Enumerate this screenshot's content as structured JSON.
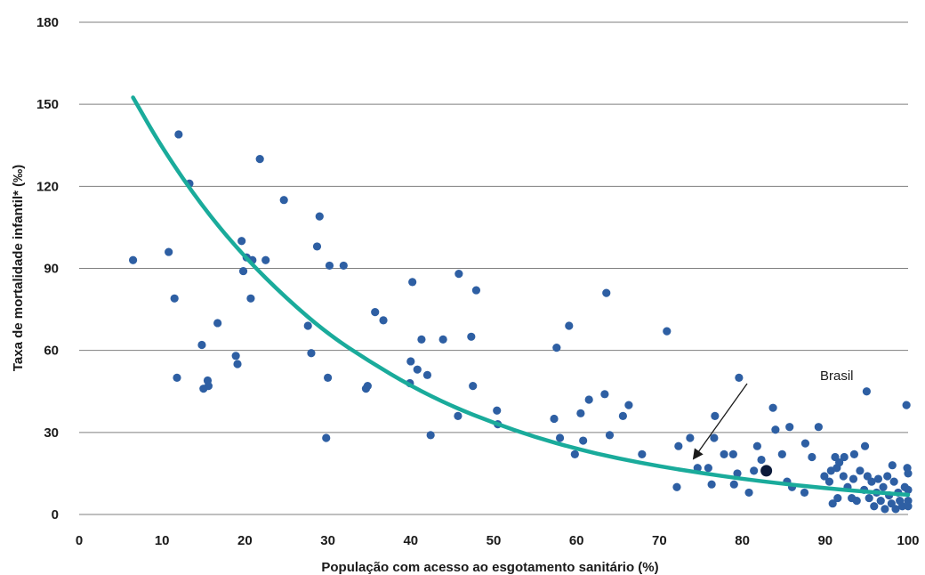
{
  "chart_data": {
    "type": "scatter",
    "xlabel": "População com acesso ao esgotamento sanitário (%)",
    "ylabel": "Taxa de mortalidade infantil* (‰)",
    "xlim": [
      0,
      100
    ],
    "ylim": [
      0,
      180
    ],
    "x_ticks": [
      "0",
      "10",
      "20",
      "30",
      "40",
      "50",
      "60",
      "70",
      "80",
      "90",
      "100"
    ],
    "y_ticks": [
      "0",
      "30",
      "60",
      "90",
      "120",
      "150",
      "180"
    ],
    "grid": "horizontal",
    "colors": {
      "points": "#2e5fa3",
      "trend": "#1aab9b",
      "highlight": "#0b1a3a",
      "grid": "#7f7f7f"
    },
    "series": [
      {
        "type": "scatter",
        "points": [
          [
            6.5,
            93
          ],
          [
            10.8,
            96
          ],
          [
            11.5,
            79
          ],
          [
            11.8,
            50
          ],
          [
            12,
            139
          ],
          [
            13.3,
            121
          ],
          [
            14.8,
            62
          ],
          [
            15,
            46
          ],
          [
            15.5,
            49
          ],
          [
            15.6,
            47
          ],
          [
            16.7,
            70
          ],
          [
            18.9,
            58
          ],
          [
            19.1,
            55
          ],
          [
            19.6,
            100
          ],
          [
            19.8,
            89
          ],
          [
            20.2,
            94
          ],
          [
            20.7,
            79
          ],
          [
            20.9,
            93
          ],
          [
            21.8,
            130
          ],
          [
            22.5,
            93
          ],
          [
            24.7,
            115
          ],
          [
            27.6,
            69
          ],
          [
            28,
            59
          ],
          [
            28.7,
            98
          ],
          [
            29,
            109
          ],
          [
            29.8,
            28
          ],
          [
            30,
            50
          ],
          [
            30.2,
            91
          ],
          [
            31.9,
            91
          ],
          [
            34.6,
            46
          ],
          [
            34.8,
            47
          ],
          [
            35.7,
            74
          ],
          [
            36.7,
            71
          ],
          [
            39.9,
            48
          ],
          [
            40,
            56
          ],
          [
            40.2,
            85
          ],
          [
            40.8,
            53
          ],
          [
            41.3,
            64
          ],
          [
            42,
            51
          ],
          [
            42.4,
            29
          ],
          [
            43.9,
            64
          ],
          [
            45.7,
            36
          ],
          [
            45.8,
            88
          ],
          [
            47.3,
            65
          ],
          [
            47.5,
            47
          ],
          [
            47.9,
            82
          ],
          [
            50.4,
            38
          ],
          [
            50.5,
            33
          ],
          [
            57.3,
            35
          ],
          [
            57.6,
            61
          ],
          [
            58,
            28
          ],
          [
            59.1,
            69
          ],
          [
            59.8,
            22
          ],
          [
            60.5,
            37
          ],
          [
            60.8,
            27
          ],
          [
            61.5,
            42
          ],
          [
            63.4,
            44
          ],
          [
            63.6,
            81
          ],
          [
            64,
            29
          ],
          [
            65.6,
            36
          ],
          [
            66.3,
            40
          ],
          [
            67.9,
            22
          ],
          [
            70.9,
            67
          ],
          [
            72.1,
            10
          ],
          [
            72.3,
            25
          ],
          [
            73.7,
            28
          ],
          [
            74.6,
            17
          ],
          [
            75.9,
            17
          ],
          [
            76.3,
            11
          ],
          [
            76.6,
            28
          ],
          [
            76.7,
            36
          ],
          [
            77.8,
            22
          ],
          [
            78.9,
            22
          ],
          [
            79,
            11
          ],
          [
            79.4,
            15
          ],
          [
            79.6,
            50
          ],
          [
            80.8,
            8
          ],
          [
            81.4,
            16
          ],
          [
            81.8,
            25
          ],
          [
            82.3,
            20
          ],
          [
            83.7,
            39
          ],
          [
            84,
            31
          ],
          [
            84.8,
            22
          ],
          [
            85.4,
            12
          ],
          [
            85.7,
            32
          ],
          [
            86,
            10
          ],
          [
            87.5,
            8
          ],
          [
            87.6,
            26
          ],
          [
            88.4,
            21
          ],
          [
            89.2,
            32
          ],
          [
            89.9,
            14
          ],
          [
            90.5,
            12
          ],
          [
            90.7,
            16
          ],
          [
            90.9,
            4
          ],
          [
            91.2,
            21
          ],
          [
            91.4,
            17
          ],
          [
            91.5,
            6
          ],
          [
            91.7,
            19
          ],
          [
            92.2,
            14
          ],
          [
            92.3,
            21
          ],
          [
            92.7,
            10
          ],
          [
            93.2,
            6
          ],
          [
            93.4,
            13
          ],
          [
            93.5,
            22
          ],
          [
            93.8,
            5
          ],
          [
            94.2,
            16
          ],
          [
            94.7,
            9
          ],
          [
            94.8,
            25
          ],
          [
            95,
            45
          ],
          [
            95.1,
            14
          ],
          [
            95.3,
            6
          ],
          [
            95.6,
            12
          ],
          [
            95.9,
            3
          ],
          [
            96.2,
            8
          ],
          [
            96.4,
            13
          ],
          [
            96.7,
            5
          ],
          [
            97,
            10
          ],
          [
            97.2,
            2
          ],
          [
            97.5,
            14
          ],
          [
            97.7,
            7
          ],
          [
            98,
            4
          ],
          [
            98.1,
            18
          ],
          [
            98.3,
            12
          ],
          [
            98.5,
            2
          ],
          [
            98.8,
            8
          ],
          [
            99,
            5
          ],
          [
            99.3,
            3
          ],
          [
            99.6,
            10
          ],
          [
            99.8,
            40
          ],
          [
            99.9,
            17
          ],
          [
            100,
            15
          ],
          [
            100,
            5
          ],
          [
            100,
            3
          ],
          [
            100,
            9
          ]
        ]
      },
      {
        "type": "line",
        "points": [
          [
            6.5,
            152.5
          ],
          [
            10,
            134
          ],
          [
            15,
            112
          ],
          [
            20,
            94
          ],
          [
            25,
            79
          ],
          [
            30,
            66
          ],
          [
            35,
            56
          ],
          [
            40,
            47
          ],
          [
            45,
            39.5
          ],
          [
            50,
            33.5
          ],
          [
            55,
            28.3
          ],
          [
            60,
            24
          ],
          [
            65,
            20.5
          ],
          [
            70,
            17.6
          ],
          [
            75,
            15.2
          ],
          [
            80,
            13
          ],
          [
            85,
            11.2
          ],
          [
            90,
            9.6
          ],
          [
            95,
            8.3
          ],
          [
            100,
            7.2
          ]
        ]
      }
    ],
    "highlight_point": {
      "label": "Brasil",
      "x": 82.9,
      "y": 16
    },
    "annotations": [
      {
        "text": "Brasil",
        "target_x": 82.9,
        "target_y": 16
      }
    ]
  }
}
